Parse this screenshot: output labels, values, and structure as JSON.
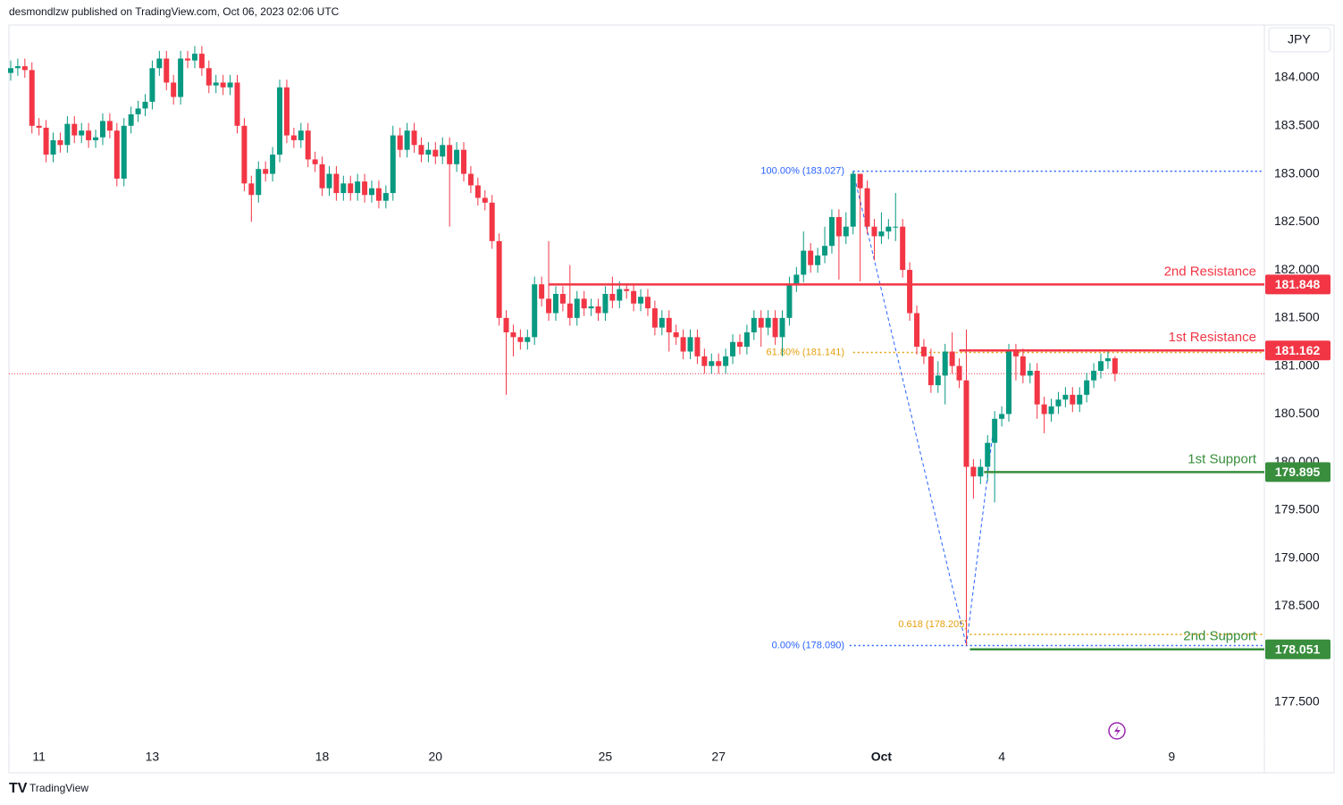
{
  "header": "desmondlzw published on TradingView.com, Oct 06, 2023 02:06 UTC",
  "currency": "JPY",
  "brand": "TradingView",
  "chart_data": {
    "type": "candlestick",
    "open": [
      184.05,
      184.1,
      184.12,
      184.08,
      183.5,
      183.48,
      183.2,
      183.35,
      183.3,
      183.52,
      183.4,
      183.45,
      183.35,
      183.38,
      183.55,
      183.45,
      182.95,
      183.5,
      183.62,
      183.68,
      183.75,
      184.1,
      184.2,
      183.95,
      183.8,
      184.2,
      184.18,
      184.25,
      184.1,
      183.92,
      183.95,
      183.9,
      183.95,
      183.5,
      182.9,
      182.78,
      183.05,
      183.0,
      183.2,
      183.9,
      183.4,
      183.35,
      183.45,
      183.15,
      183.1,
      182.85,
      183.0,
      182.8,
      182.9,
      182.8,
      182.92,
      182.78,
      182.85,
      182.72,
      182.8,
      183.4,
      183.25,
      183.45,
      183.3,
      183.2,
      183.25,
      183.18,
      183.3,
      183.1,
      183.25,
      183.0,
      182.88,
      182.75,
      182.7,
      182.3,
      181.5,
      181.35,
      181.3,
      181.25,
      181.3,
      181.85,
      181.7,
      181.55,
      181.75,
      181.65,
      181.5,
      181.7,
      181.6,
      181.62,
      181.55,
      181.75,
      181.68,
      181.8,
      181.78,
      181.65,
      181.72,
      181.6,
      181.4,
      181.5,
      181.35,
      181.3,
      181.15,
      181.3,
      181.1,
      181.0,
      181.05,
      181.0,
      181.1,
      181.25,
      181.2,
      181.35,
      181.5,
      181.4,
      181.5,
      181.3,
      181.5,
      181.85,
      181.95,
      182.2,
      182.05,
      182.15,
      182.25,
      182.55,
      182.35,
      182.45,
      183.0,
      182.85,
      182.45,
      182.35,
      182.4,
      182.45,
      182.45,
      182.0,
      181.55,
      181.2,
      181.1,
      180.8,
      180.9,
      181.15,
      181.0,
      180.85,
      179.95,
      179.85,
      179.95,
      180.2,
      180.45,
      180.5,
      181.15,
      181.1,
      180.9,
      180.95,
      180.6,
      180.5,
      180.58,
      180.65,
      180.7,
      180.6,
      180.7,
      180.85,
      180.95,
      181.05,
      181.08
    ],
    "high": [
      184.18,
      184.2,
      184.2,
      184.16,
      183.58,
      183.56,
      183.43,
      183.43,
      183.6,
      183.6,
      183.53,
      183.53,
      183.46,
      183.63,
      183.63,
      183.53,
      183.58,
      183.7,
      183.76,
      183.83,
      184.18,
      184.28,
      184.28,
      184.03,
      184.28,
      184.28,
      184.33,
      184.33,
      184.18,
      184.03,
      184.03,
      184.03,
      184.03,
      183.58,
      182.98,
      183.13,
      183.13,
      183.28,
      183.98,
      183.98,
      183.48,
      183.53,
      183.53,
      183.23,
      183.18,
      183.08,
      183.08,
      182.98,
      182.98,
      183.0,
      183.0,
      182.93,
      182.93,
      182.88,
      183.5,
      183.48,
      183.53,
      183.53,
      183.38,
      183.33,
      183.33,
      183.38,
      183.38,
      183.33,
      183.33,
      183.08,
      182.96,
      182.83,
      182.78,
      182.38,
      181.58,
      181.43,
      181.38,
      181.38,
      181.93,
      181.93,
      182.3,
      181.83,
      181.83,
      182.05,
      181.78,
      181.78,
      181.7,
      181.7,
      181.83,
      181.93,
      181.88,
      181.86,
      181.86,
      181.8,
      181.8,
      181.68,
      181.58,
      181.58,
      181.43,
      181.38,
      181.38,
      181.38,
      181.18,
      181.13,
      181.13,
      181.18,
      181.33,
      181.33,
      181.43,
      181.58,
      181.58,
      181.58,
      181.58,
      181.58,
      181.93,
      182.03,
      182.4,
      182.28,
      182.23,
      182.45,
      182.63,
      182.63,
      182.6,
      183.03,
      183.0,
      182.93,
      182.53,
      182.6,
      182.53,
      182.8,
      182.53,
      182.08,
      181.63,
      181.28,
      181.18,
      181.05,
      181.23,
      181.35,
      181.08,
      181.38,
      180.03,
      180.03,
      180.28,
      180.53,
      180.58,
      181.23,
      181.23,
      181.18,
      181.03,
      181.03,
      180.68,
      180.66,
      180.73,
      180.78,
      180.78,
      180.78,
      180.93,
      181.03,
      181.13,
      181.16,
      181.1
    ],
    "low": [
      183.97,
      184.02,
      184.0,
      183.42,
      183.4,
      183.12,
      183.12,
      183.22,
      183.22,
      183.32,
      183.32,
      183.27,
      183.27,
      183.3,
      183.37,
      182.87,
      182.87,
      183.42,
      183.54,
      183.6,
      183.67,
      184.02,
      183.87,
      183.72,
      183.72,
      184.1,
      184.1,
      184.02,
      183.84,
      183.84,
      183.82,
      183.82,
      183.42,
      182.82,
      182.5,
      182.7,
      182.92,
      182.92,
      183.12,
      183.32,
      183.27,
      183.27,
      183.07,
      183.02,
      182.77,
      182.77,
      182.72,
      182.72,
      182.72,
      182.72,
      182.7,
      182.7,
      182.64,
      182.64,
      182.72,
      183.17,
      183.17,
      183.22,
      183.12,
      183.12,
      183.1,
      183.1,
      182.45,
      183.02,
      182.92,
      182.8,
      182.67,
      182.62,
      182.22,
      181.42,
      180.7,
      181.1,
      181.17,
      181.17,
      181.22,
      181.62,
      181.47,
      181.47,
      181.57,
      181.42,
      181.42,
      181.52,
      181.52,
      181.47,
      181.47,
      181.6,
      181.6,
      181.7,
      181.57,
      181.57,
      181.52,
      181.32,
      181.32,
      181.15,
      181.22,
      181.07,
      181.07,
      181.02,
      180.92,
      180.92,
      180.92,
      180.92,
      181.02,
      181.12,
      181.12,
      181.27,
      181.2,
      181.32,
      181.22,
      181.1,
      181.42,
      181.77,
      181.87,
      181.97,
      181.97,
      182.07,
      182.17,
      181.9,
      182.27,
      182.37,
      181.88,
      182.37,
      182.1,
      182.27,
      182.32,
      182.3,
      181.92,
      181.47,
      181.12,
      181.02,
      180.72,
      180.72,
      180.6,
      180.92,
      180.77,
      178.09,
      179.62,
      179.77,
      179.8,
      179.58,
      180.37,
      180.42,
      180.85,
      180.82,
      180.82,
      180.45,
      180.3,
      180.42,
      180.5,
      180.57,
      180.52,
      180.52,
      180.62,
      180.77,
      180.87,
      180.97,
      180.84
    ],
    "close": [
      184.1,
      184.12,
      184.08,
      183.5,
      183.48,
      183.2,
      183.35,
      183.3,
      183.52,
      183.4,
      183.45,
      183.35,
      183.38,
      183.55,
      183.45,
      182.95,
      183.5,
      183.62,
      183.68,
      183.75,
      184.1,
      184.2,
      183.95,
      183.8,
      184.2,
      184.18,
      184.25,
      184.1,
      183.92,
      183.95,
      183.9,
      183.95,
      183.5,
      182.9,
      182.78,
      183.05,
      183.0,
      183.2,
      183.9,
      183.4,
      183.35,
      183.45,
      183.15,
      183.1,
      182.85,
      183.0,
      182.8,
      182.9,
      182.8,
      182.92,
      182.78,
      182.85,
      182.72,
      182.8,
      183.4,
      183.25,
      183.45,
      183.3,
      183.2,
      183.25,
      183.18,
      183.3,
      183.1,
      183.25,
      183.0,
      182.88,
      182.75,
      182.7,
      182.3,
      181.5,
      181.35,
      181.3,
      181.25,
      181.3,
      181.85,
      181.7,
      181.55,
      181.75,
      181.65,
      181.5,
      181.7,
      181.6,
      181.62,
      181.55,
      181.75,
      181.68,
      181.8,
      181.78,
      181.65,
      181.72,
      181.6,
      181.4,
      181.5,
      181.35,
      181.3,
      181.15,
      181.3,
      181.1,
      181.0,
      181.05,
      181.0,
      181.1,
      181.25,
      181.2,
      181.35,
      181.5,
      181.4,
      181.5,
      181.3,
      181.5,
      181.85,
      181.95,
      182.2,
      182.05,
      182.15,
      182.25,
      182.55,
      182.35,
      182.45,
      183.0,
      182.85,
      182.45,
      182.35,
      182.4,
      182.45,
      182.45,
      182.0,
      181.55,
      181.2,
      181.1,
      180.8,
      180.9,
      181.15,
      181.0,
      180.85,
      179.95,
      179.85,
      179.95,
      180.2,
      180.45,
      180.5,
      181.15,
      181.1,
      180.9,
      180.95,
      180.6,
      180.5,
      180.58,
      180.65,
      180.7,
      180.6,
      180.7,
      180.85,
      180.95,
      181.05,
      181.08,
      180.92
    ],
    "up_color": "#089981",
    "down_color": "#f23645",
    "xlim": [
      -0.25,
      177.1
    ],
    "xticks": [
      {
        "value": 4,
        "label": "11"
      },
      {
        "value": 20,
        "label": "13"
      },
      {
        "value": 44,
        "label": "18"
      },
      {
        "value": 60,
        "label": "20"
      },
      {
        "value": 84,
        "label": "25"
      },
      {
        "value": 100,
        "label": "27"
      },
      {
        "value": 123,
        "label": "Oct"
      },
      {
        "value": 140,
        "label": "4"
      },
      {
        "value": 164,
        "label": "9"
      }
    ],
    "ylim": [
      176.765,
      184.549
    ],
    "yticks": [
      {
        "value": 177.5,
        "label": "177.500"
      },
      {
        "value": 178.5,
        "label": "178.500"
      },
      {
        "value": 179,
        "label": "179.000"
      },
      {
        "value": 179.5,
        "label": "179.500"
      },
      {
        "value": 180,
        "label": "180.000"
      },
      {
        "value": 180.5,
        "label": "180.500"
      },
      {
        "value": 181,
        "label": "181.000"
      },
      {
        "value": 181.5,
        "label": "181.500"
      },
      {
        "value": 182,
        "label": "182.000"
      },
      {
        "value": 182.5,
        "label": "182.500"
      },
      {
        "value": 183,
        "label": "183.000"
      },
      {
        "value": 183.5,
        "label": "183.500"
      },
      {
        "value": 184,
        "label": "184.000"
      }
    ],
    "levels": [
      {
        "name": "2nd Resistance",
        "value": 181.848,
        "color": "#f23645"
      },
      {
        "name": "1st Resistance",
        "value": 181.162,
        "color": "#f23645"
      },
      {
        "name": "1st Support",
        "value": 179.895,
        "color": "#388e3c"
      },
      {
        "name": "2nd Support",
        "value": 178.051,
        "color": "#388e3c"
      }
    ],
    "fib": [
      {
        "label": "100.00% (183.027)",
        "value": 183.027,
        "color": "#2962ff"
      },
      {
        "label": "61.80% (181.141)",
        "value": 181.141,
        "color": "#e5a00d"
      },
      {
        "label": "0.00% (178.090)",
        "value": 178.09,
        "color": "#2962ff"
      },
      {
        "label": "0.618 (178.205)",
        "value": 178.205,
        "color": "#e5a00d"
      }
    ]
  }
}
